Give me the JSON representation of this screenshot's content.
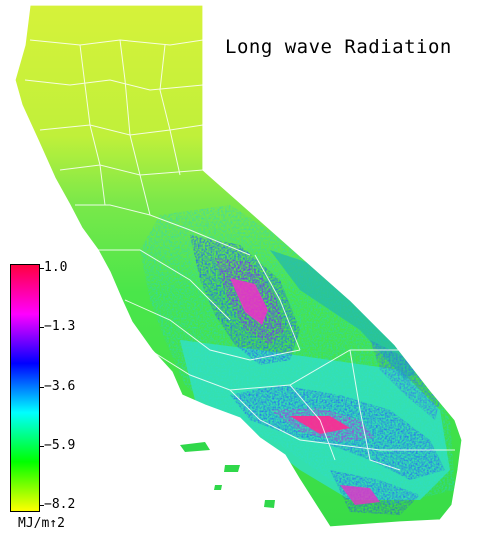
{
  "title": "Long wave Radiation",
  "legend": {
    "units": "MJ/m↑2",
    "ticks": [
      "1.0",
      "−1.3",
      "−3.6",
      "−5.9",
      "−8.2"
    ],
    "tick_values": [
      1.0,
      -1.3,
      -3.6,
      -5.9,
      -8.2
    ],
    "range": [
      -8.2,
      1.0
    ],
    "colors": [
      "#ffff00",
      "#00ff00",
      "#00ffff",
      "#0000ff",
      "#ff00ff",
      "#ff0040"
    ]
  },
  "colors": {
    "north": "#c8f032",
    "mid": "#48e84a",
    "coast": "#28d84a",
    "cyan": "#22e0d8",
    "blue": "#2a3aff",
    "purple": "#9a1ee0",
    "magenta": "#f02cc8",
    "pink": "#ff2a90",
    "boundary": "#ffffff"
  }
}
